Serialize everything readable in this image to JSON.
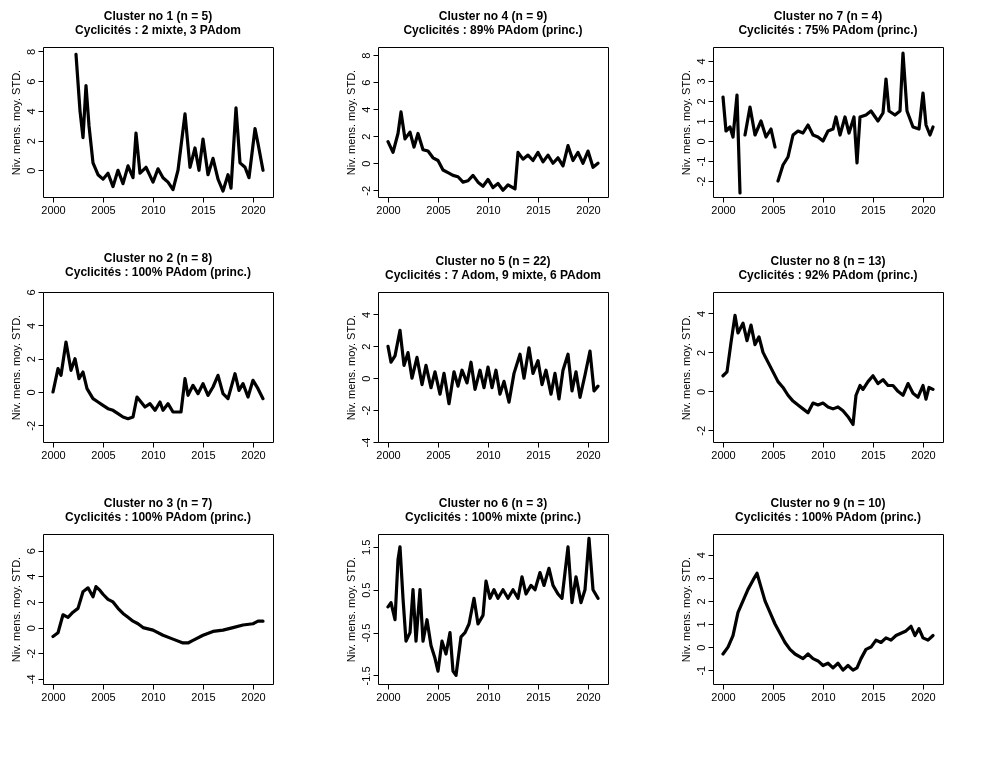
{
  "chart_data": [
    {
      "type": "line",
      "title": "Cluster no 1 (n = 5)",
      "subtitle": "Cyclicités : 2 mixte, 3 PAdom",
      "ylabel": "Niv. mens. moy. STD.",
      "xlim": [
        1999,
        2022
      ],
      "xticks": [
        2000,
        2005,
        2010,
        2015,
        2020
      ],
      "ylim": [
        -1.8,
        8.3
      ],
      "yticks": [
        0,
        2,
        4,
        6,
        8
      ],
      "series": [
        {
          "color": "#000000",
          "x": [
            2002.3,
            2002.7,
            2003.0,
            2003.3,
            2003.6,
            2004,
            2004.5,
            2005,
            2005.5,
            2006,
            2006.5,
            2007,
            2007.5,
            2008,
            2008.3,
            2008.7,
            2009.3,
            2010,
            2010.5,
            2011,
            2011.5,
            2012,
            2012.5,
            2013.2,
            2013.7,
            2014.2,
            2014.6,
            2015,
            2015.5,
            2016,
            2016.5,
            2017,
            2017.5,
            2017.8,
            2018.3,
            2018.7,
            2019.2,
            2019.6,
            2020.2,
            2020.5,
            2021
          ],
          "values": [
            7.8,
            4,
            2.2,
            5.7,
            3,
            0.5,
            -0.3,
            -0.6,
            -0.2,
            -1.1,
            0,
            -0.9,
            0.3,
            -0.5,
            2.5,
            -0.2,
            0.2,
            -0.8,
            0.1,
            -0.5,
            -0.8,
            -1.3,
            0,
            3.8,
            0.2,
            1.5,
            0,
            2.1,
            -0.3,
            0.8,
            -0.6,
            -1.4,
            -0.3,
            -1.2,
            4.2,
            0.5,
            0.2,
            -0.5,
            2.8,
            1.8,
            0
          ]
        }
      ]
    },
    {
      "type": "line",
      "title": "Cluster no 4 (n = 9)",
      "subtitle": "Cyclicités : 89% PAdom (princ.)",
      "ylabel": "Niv. mens. moy. STD.",
      "xlim": [
        1999,
        2022
      ],
      "xticks": [
        2000,
        2005,
        2010,
        2015,
        2020
      ],
      "ylim": [
        -2.5,
        8.6
      ],
      "yticks": [
        -2,
        0,
        2,
        4,
        6,
        8
      ],
      "series": [
        {
          "color": "#000000",
          "x": [
            2000,
            2000.5,
            2001,
            2001.3,
            2001.7,
            2002.2,
            2002.6,
            2003,
            2003.5,
            2004,
            2004.5,
            2005,
            2005.5,
            2006,
            2006.5,
            2007,
            2007.5,
            2008,
            2008.5,
            2009,
            2009.5,
            2010,
            2010.5,
            2011,
            2011.5,
            2012,
            2012.7,
            2013,
            2013.5,
            2014,
            2014.5,
            2015,
            2015.5,
            2016,
            2016.5,
            2017,
            2017.5,
            2018,
            2018.5,
            2019,
            2019.5,
            2020,
            2020.5,
            2021
          ],
          "values": [
            1.6,
            0.8,
            2.2,
            3.8,
            1.8,
            2.3,
            1.2,
            2.2,
            1.0,
            0.9,
            0.4,
            0.2,
            -0.5,
            -0.7,
            -0.9,
            -1.0,
            -1.4,
            -1.3,
            -0.9,
            -1.4,
            -1.7,
            -1.2,
            -1.8,
            -1.5,
            -2.0,
            -1.6,
            -1.9,
            0.8,
            0.3,
            0.6,
            0.2,
            0.8,
            0.1,
            0.6,
            0,
            0.4,
            -0.2,
            1.3,
            0.2,
            0.8,
            0,
            0.9,
            -0.3,
            0
          ]
        }
      ]
    },
    {
      "type": "line",
      "title": "Cluster no 7 (n = 4)",
      "subtitle": "Cyclicités : 75% PAdom (princ.)",
      "ylabel": "Niv. mens. moy. STD.",
      "xlim": [
        1999,
        2022
      ],
      "xticks": [
        2000,
        2005,
        2010,
        2015,
        2020
      ],
      "ylim": [
        -2.8,
        4.7
      ],
      "yticks": [
        -2,
        -1,
        0,
        1,
        2,
        3,
        4
      ],
      "series": [
        {
          "color": "#000000",
          "x": [
            2000,
            2000.3,
            2000.7,
            2001,
            2001.4,
            2001.7,
            2001.9,
            2002.2,
            2002.7,
            2003.2,
            2003.8,
            2004.3,
            2004.8,
            2005.2,
            2005.35,
            2005.5,
            2006,
            2006.5,
            2007,
            2007.5,
            2008,
            2008.5,
            2009,
            2009.5,
            2010,
            2010.5,
            2011,
            2011.3,
            2011.7,
            2012.2,
            2012.6,
            2013.1,
            2013.4,
            2013.7,
            2014.3,
            2014.8,
            2015.5,
            2016,
            2016.3,
            2016.6,
            2017.2,
            2017.7,
            2018,
            2018.4,
            2019,
            2019.6,
            2020,
            2020.3,
            2020.7,
            2021
          ],
          "values": [
            2.2,
            0.5,
            0.7,
            0.2,
            2.3,
            -2.6,
            null,
            0.3,
            1.7,
            0.3,
            1.0,
            0.2,
            0.6,
            -0.3,
            null,
            -2.0,
            -1.2,
            -0.8,
            0.3,
            0.5,
            0.4,
            0.8,
            0.3,
            0.2,
            0,
            0.5,
            0.6,
            1.2,
            0.3,
            1.2,
            0.4,
            1.2,
            -1.1,
            1.2,
            1.3,
            1.5,
            1.0,
            1.4,
            3.1,
            1.5,
            1.3,
            1.5,
            4.4,
            1.5,
            0.7,
            0.6,
            2.4,
            0.8,
            0.3,
            0.7
          ]
        }
      ]
    },
    {
      "type": "line",
      "title": "Cluster no 2 (n = 8)",
      "subtitle": "Cyclicités : 100% PAdom (princ.)",
      "ylabel": "Niv. mens. moy. STD.",
      "xlim": [
        1999,
        2022
      ],
      "xticks": [
        2000,
        2005,
        2010,
        2015,
        2020
      ],
      "ylim": [
        -3,
        6
      ],
      "yticks": [
        -2,
        0,
        2,
        4,
        6
      ],
      "series": [
        {
          "color": "#000000",
          "x": [
            2000,
            2000.5,
            2000.8,
            2001.3,
            2001.8,
            2002.2,
            2002.6,
            2003,
            2003.4,
            2004,
            2004.5,
            2005,
            2005.5,
            2006,
            2006.5,
            2007,
            2007.5,
            2008,
            2008.4,
            2008.8,
            2009.2,
            2009.7,
            2010.2,
            2010.7,
            2011,
            2011.5,
            2012,
            2012.8,
            2013.2,
            2013.5,
            2014,
            2014.5,
            2015,
            2015.5,
            2016,
            2016.5,
            2017,
            2017.5,
            2018.2,
            2018.6,
            2019,
            2019.5,
            2020,
            2020.5,
            2021
          ],
          "values": [
            0,
            1.4,
            1.0,
            3.0,
            1.3,
            2.0,
            0.8,
            1.2,
            0.2,
            -0.4,
            -0.6,
            -0.8,
            -1.0,
            -1.1,
            -1.3,
            -1.5,
            -1.6,
            -1.5,
            -0.3,
            -0.6,
            -0.9,
            -0.7,
            -1.1,
            -0.6,
            -1.1,
            -0.7,
            -1.2,
            -1.2,
            0.8,
            -0.2,
            0.4,
            -0.1,
            0.5,
            -0.2,
            0.3,
            1.0,
            -0.1,
            -0.4,
            1.1,
            0.1,
            0.5,
            -0.3,
            0.7,
            0.2,
            -0.4
          ]
        }
      ]
    },
    {
      "type": "line",
      "title": "Cluster no 5 (n = 22)",
      "subtitle": "Cyclicités : 7 Adom, 9 mixte, 6 PAdom",
      "ylabel": "Niv. mens. moy. STD.",
      "xlim": [
        1999,
        2022
      ],
      "xticks": [
        2000,
        2005,
        2010,
        2015,
        2020
      ],
      "ylim": [
        -4,
        5.4
      ],
      "yticks": [
        -4,
        -2,
        0,
        2,
        4
      ],
      "series": [
        {
          "color": "#000000",
          "x": [
            2000,
            2000.3,
            2000.7,
            2001.2,
            2001.6,
            2002,
            2002.4,
            2002.9,
            2003.4,
            2003.8,
            2004.3,
            2004.7,
            2005.2,
            2005.6,
            2006.1,
            2006.6,
            2007,
            2007.4,
            2007.9,
            2008.3,
            2008.7,
            2009.2,
            2009.6,
            2010,
            2010.4,
            2010.8,
            2011.2,
            2011.6,
            2012.1,
            2012.6,
            2013.2,
            2013.6,
            2014.1,
            2014.5,
            2015,
            2015.4,
            2015.8,
            2016.3,
            2016.7,
            2017.1,
            2017.5,
            2018,
            2018.4,
            2018.8,
            2019.2,
            2019.7,
            2020.2,
            2020.6,
            2021
          ],
          "values": [
            2.0,
            1.0,
            1.4,
            3.0,
            0.8,
            1.6,
            0,
            1.3,
            -0.4,
            0.8,
            -0.6,
            0.4,
            -1.0,
            0.3,
            -1.6,
            0.4,
            -0.5,
            0.5,
            -0.3,
            1.0,
            -0.7,
            0.5,
            -0.6,
            0.7,
            -0.6,
            0.5,
            -1.0,
            -0.2,
            -1.5,
            0.3,
            1.5,
            0,
            1.9,
            0.3,
            1.1,
            -0.4,
            0.5,
            -1.0,
            0.3,
            -1.3,
            0.5,
            1.5,
            -0.8,
            0.4,
            -1.2,
            0.2,
            1.7,
            -0.8,
            -0.5
          ]
        }
      ]
    },
    {
      "type": "line",
      "title": "Cluster no 8 (n = 13)",
      "subtitle": "Cyclicités : 92% PAdom (princ.)",
      "ylabel": "Niv. mens. moy. STD.",
      "xlim": [
        1999,
        2022
      ],
      "xticks": [
        2000,
        2005,
        2010,
        2015,
        2020
      ],
      "ylim": [
        -2.6,
        5.1
      ],
      "yticks": [
        -2,
        0,
        2,
        4
      ],
      "series": [
        {
          "color": "#000000",
          "x": [
            2000,
            2000.4,
            2000.8,
            2001.2,
            2001.5,
            2002,
            2002.4,
            2002.8,
            2003.2,
            2003.6,
            2004,
            2004.5,
            2005,
            2005.5,
            2006,
            2006.5,
            2007,
            2007.5,
            2008,
            2008.5,
            2009,
            2009.5,
            2010,
            2010.5,
            2011,
            2011.5,
            2012,
            2012.5,
            2013,
            2013.3,
            2013.7,
            2014,
            2014.5,
            2015,
            2015.5,
            2016,
            2016.5,
            2017,
            2017.5,
            2018,
            2018.5,
            2019,
            2019.5,
            2020,
            2020.3,
            2020.6,
            2021
          ],
          "values": [
            0.8,
            1.0,
            2.5,
            3.9,
            3.0,
            3.5,
            2.6,
            3.4,
            2.4,
            2.8,
            2.0,
            1.5,
            1.0,
            0.5,
            0.2,
            -0.2,
            -0.5,
            -0.7,
            -0.9,
            -1.1,
            -0.6,
            -0.7,
            -0.6,
            -0.8,
            -0.9,
            -0.8,
            -1.0,
            -1.3,
            -1.7,
            -0.2,
            0.3,
            0.1,
            0.5,
            0.8,
            0.4,
            0.6,
            0.3,
            0.3,
            0,
            -0.2,
            0.4,
            -0.1,
            -0.3,
            0.3,
            -0.4,
            0.2,
            0.1
          ]
        }
      ]
    },
    {
      "type": "line",
      "title": "Cluster no 3 (n = 7)",
      "subtitle": "Cyclicités : 100% PAdom (princ.)",
      "ylabel": "Niv. mens. moy. STD.",
      "xlim": [
        1999,
        2022
      ],
      "xticks": [
        2000,
        2005,
        2010,
        2015,
        2020
      ],
      "ylim": [
        -4.4,
        7.3
      ],
      "yticks": [
        -4,
        -2,
        0,
        2,
        4,
        6
      ],
      "series": [
        {
          "color": "#000000",
          "x": [
            2000,
            2000.5,
            2001,
            2001.5,
            2002,
            2002.5,
            2003,
            2003.5,
            2004,
            2004.3,
            2004.7,
            2005,
            2005.5,
            2006,
            2006.5,
            2007,
            2007.5,
            2008,
            2008.5,
            2009,
            2010,
            2011,
            2012,
            2013,
            2013.5,
            2014,
            2015,
            2016,
            2017,
            2018,
            2019,
            2020,
            2020.5,
            2021
          ],
          "values": [
            -0.7,
            -0.4,
            1.0,
            0.8,
            1.2,
            1.5,
            2.8,
            3.1,
            2.4,
            3.2,
            2.9,
            2.6,
            2.2,
            2.0,
            1.5,
            1.1,
            0.8,
            0.5,
            0.3,
            0,
            -0.2,
            -0.6,
            -0.9,
            -1.2,
            -1.2,
            -1.0,
            -0.6,
            -0.3,
            -0.2,
            0,
            0.2,
            0.3,
            0.5,
            0.5
          ]
        }
      ]
    },
    {
      "type": "line",
      "title": "Cluster no 6 (n = 3)",
      "subtitle": "Cyclicités : 100% mixte (princ.)",
      "ylabel": "Niv. mens. moy. STD.",
      "xlim": [
        1999,
        2022
      ],
      "xticks": [
        2000,
        2005,
        2010,
        2015,
        2020
      ],
      "ylim": [
        -1.7,
        1.8
      ],
      "yticks": [
        -1.5,
        -0.5,
        0.5,
        1.5
      ],
      "series": [
        {
          "color": "#000000",
          "x": [
            2000,
            2000.3,
            2000.7,
            2001,
            2001.2,
            2001.5,
            2001.8,
            2002.2,
            2002.5,
            2002.8,
            2003.2,
            2003.5,
            2003.9,
            2004.3,
            2004.7,
            2005,
            2005.4,
            2005.8,
            2006.2,
            2006.5,
            2006.8,
            2007.3,
            2007.7,
            2008.1,
            2008.6,
            2009,
            2009.5,
            2009.8,
            2010.2,
            2010.6,
            2011,
            2011.5,
            2012,
            2012.5,
            2013,
            2013.4,
            2013.8,
            2014.3,
            2014.7,
            2015.2,
            2015.6,
            2016.1,
            2016.5,
            2017,
            2017.4,
            2018,
            2018.4,
            2018.8,
            2019.3,
            2019.7,
            2020.1,
            2020.5,
            2021
          ],
          "values": [
            0.1,
            0.2,
            -0.2,
            1.2,
            1.5,
            0.3,
            -0.7,
            -0.5,
            0.5,
            -0.7,
            0.5,
            -0.7,
            -0.2,
            -0.8,
            -1.1,
            -1.4,
            -0.7,
            -1.0,
            -0.5,
            -1.4,
            -1.5,
            -0.6,
            -0.5,
            -0.3,
            0.3,
            -0.3,
            -0.1,
            0.7,
            0.3,
            0.5,
            0.3,
            0.5,
            0.3,
            0.5,
            0.3,
            0.8,
            0.4,
            0.6,
            0.5,
            0.9,
            0.6,
            1.0,
            0.6,
            0.4,
            0.3,
            1.5,
            0.2,
            0.8,
            0.2,
            0.5,
            1.7,
            0.5,
            0.3
          ]
        }
      ]
    },
    {
      "type": "line",
      "title": "Cluster no 9 (n = 10)",
      "subtitle": "Cyclicités : 100% PAdom (princ.)",
      "ylabel": "Niv. mens. moy. STD.",
      "xlim": [
        1999,
        2022
      ],
      "xticks": [
        2000,
        2005,
        2010,
        2015,
        2020
      ],
      "ylim": [
        -1.6,
        4.9
      ],
      "yticks": [
        -1,
        0,
        1,
        2,
        3,
        4
      ],
      "series": [
        {
          "color": "#000000",
          "x": [
            2000,
            2000.5,
            2001,
            2001.5,
            2002,
            2002.5,
            2003,
            2003.4,
            2003.8,
            2004.2,
            2004.7,
            2005.2,
            2005.7,
            2006.2,
            2006.7,
            2007.2,
            2008,
            2008.5,
            2009,
            2009.5,
            2010,
            2010.5,
            2011,
            2011.5,
            2012,
            2012.5,
            2013,
            2013.4,
            2013.8,
            2014.3,
            2014.8,
            2015.3,
            2015.8,
            2016.3,
            2016.8,
            2017.3,
            2017.8,
            2018.3,
            2018.8,
            2019.2,
            2019.6,
            2020,
            2020.5,
            2021
          ],
          "values": [
            -0.3,
            0,
            0.5,
            1.5,
            2.0,
            2.5,
            2.9,
            3.2,
            2.6,
            2.0,
            1.5,
            1.0,
            0.6,
            0.2,
            -0.1,
            -0.3,
            -0.5,
            -0.3,
            -0.5,
            -0.6,
            -0.8,
            -0.7,
            -0.9,
            -0.7,
            -1.0,
            -0.8,
            -1.0,
            -0.9,
            -0.5,
            -0.1,
            0,
            0.3,
            0.2,
            0.4,
            0.3,
            0.5,
            0.6,
            0.7,
            0.9,
            0.5,
            0.8,
            0.4,
            0.3,
            0.5
          ]
        }
      ]
    }
  ]
}
